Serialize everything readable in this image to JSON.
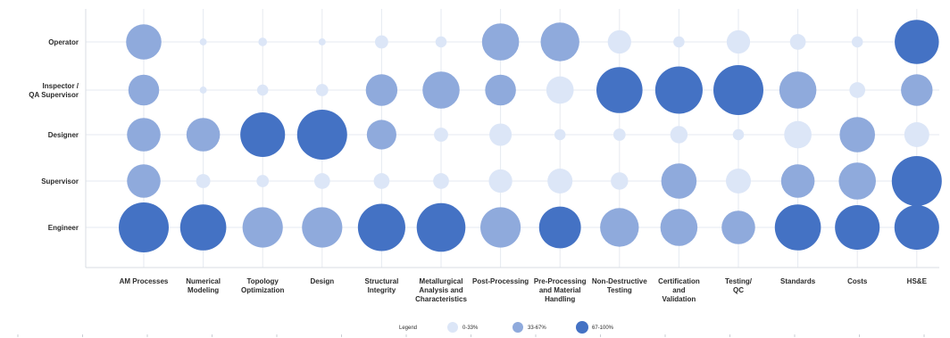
{
  "chart_data": {
    "type": "bubble",
    "rows": [
      "Operator",
      "Inspector / QA Supervisor",
      "Designer",
      "Supervisor",
      "Engineer"
    ],
    "columns": [
      "AM Processes",
      "Numerical Modeling",
      "Topology Optimization",
      "Design",
      "Structural Integrity",
      "Metallurgical Analysis and Characteristics",
      "Post-Processing",
      "Pre-Processing and Material Handling",
      "Non-Destructive Testing",
      "Certification and Validation",
      "Testing / QC",
      "Standards",
      "Costs",
      "HS&E"
    ],
    "values": [
      [
        50,
        2,
        3,
        2,
        7,
        5,
        55,
        60,
        22,
        5,
        22,
        10,
        5,
        78
      ],
      [
        38,
        2,
        5,
        6,
        40,
        55,
        38,
        30,
        85,
        90,
        100,
        55,
        10,
        40
      ],
      [
        45,
        45,
        80,
        100,
        35,
        8,
        20,
        5,
        6,
        12,
        5,
        30,
        50,
        25
      ],
      [
        45,
        8,
        6,
        10,
        10,
        10,
        22,
        25,
        12,
        50,
        25,
        45,
        55,
        100
      ],
      [
        100,
        85,
        65,
        65,
        90,
        95,
        65,
        70,
        60,
        55,
        45,
        85,
        80,
        80
      ]
    ],
    "bands": [
      {
        "label": "0-33%",
        "min": 0,
        "max": 33,
        "color": "#dce6f7"
      },
      {
        "label": "33-67%",
        "min": 33,
        "max": 67,
        "color": "#8faadc"
      },
      {
        "label": "67-100%",
        "min": 67,
        "max": 100,
        "color": "#4472c4"
      }
    ],
    "legend": {
      "title": "Legend",
      "placement": "bottom-center"
    },
    "grid": true
  }
}
